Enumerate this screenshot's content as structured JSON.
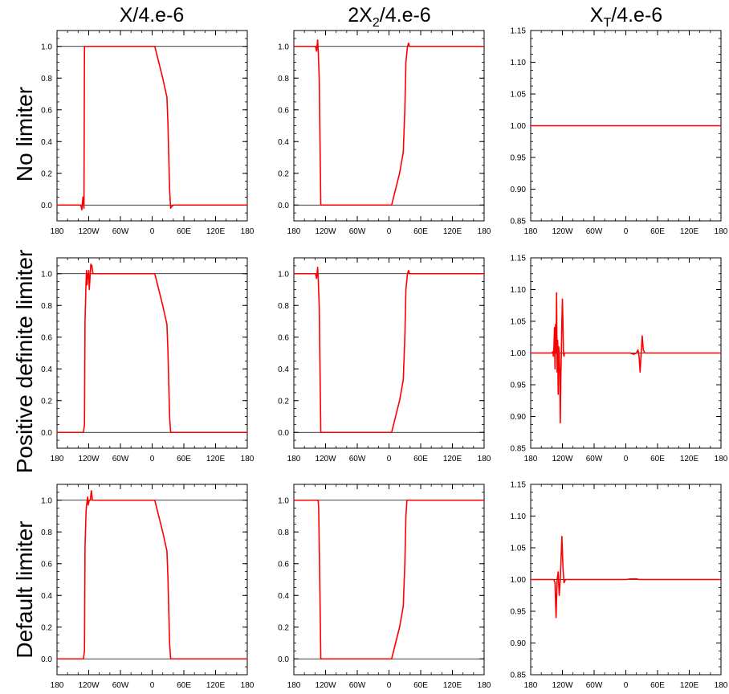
{
  "columns": [
    {
      "pre": "X",
      "sub": "",
      "post": "/4.e-6"
    },
    {
      "pre": "2X",
      "sub": "2",
      "post": "/4.e-6"
    },
    {
      "pre": "X",
      "sub": "T",
      "post": "/4.e-6"
    }
  ],
  "rows": [
    "No limiter",
    "Positive definite limiter",
    "Default limiter"
  ],
  "series_color": "#ff0000",
  "chart_data": [
    {
      "type": "line",
      "panel": "r1c1",
      "xlabel": "",
      "ylabel": "",
      "xlim": [
        -180,
        180
      ],
      "ylim": [
        -0.1,
        1.1
      ],
      "xticks": [
        "180",
        "120W",
        "60W",
        "0",
        "60E",
        "120E",
        "180"
      ],
      "yticks": [
        "0.0",
        "0.2",
        "0.4",
        "0.6",
        "0.8",
        "1.0"
      ],
      "ytick_values": [
        0,
        0.2,
        0.4,
        0.6,
        0.8,
        1.0
      ],
      "ref_lines": [
        0,
        1
      ],
      "series": [
        {
          "x": [
            -180,
            -135,
            -133,
            -131,
            -129,
            -128,
            -125,
            -122,
            5,
            20,
            28,
            30,
            33,
            35,
            37,
            40,
            180
          ],
          "y": [
            0,
            0,
            -0.03,
            0.05,
            -0.02,
            1.0,
            1.0,
            1.0,
            1.0,
            0.8,
            0.68,
            0.5,
            0.1,
            -0.02,
            -0.01,
            0,
            0
          ]
        }
      ]
    },
    {
      "type": "line",
      "panel": "r1c2",
      "xlabel": "",
      "ylabel": "",
      "xlim": [
        -180,
        180
      ],
      "ylim": [
        -0.1,
        1.1
      ],
      "xticks": [
        "180",
        "120W",
        "60W",
        "0",
        "60E",
        "120E",
        "180"
      ],
      "yticks": [
        "0.0",
        "0.2",
        "0.4",
        "0.6",
        "0.8",
        "1.0"
      ],
      "ytick_values": [
        0,
        0.2,
        0.4,
        0.6,
        0.8,
        1.0
      ],
      "ref_lines": [
        0,
        1
      ],
      "series": [
        {
          "x": [
            -180,
            -139,
            -137,
            -135,
            -134,
            -132,
            -129,
            5,
            20,
            27,
            30,
            32,
            35,
            37,
            39,
            180
          ],
          "y": [
            1.0,
            1.0,
            0.97,
            1.04,
            0.98,
            0.8,
            0.0,
            0.0,
            0.2,
            0.33,
            0.6,
            0.9,
            1.0,
            1.02,
            1.0,
            1.0
          ]
        }
      ]
    },
    {
      "type": "line",
      "panel": "r1c3",
      "xlabel": "",
      "ylabel": "",
      "xlim": [
        -180,
        180
      ],
      "ylim": [
        0.85,
        1.15
      ],
      "xticks": [
        "180",
        "120W",
        "60W",
        "0",
        "60E",
        "120E",
        "180"
      ],
      "yticks": [
        "0.85",
        "0.90",
        "0.95",
        "1.00",
        "1.05",
        "1.10",
        "1.15"
      ],
      "ytick_values": [
        0.85,
        0.9,
        0.95,
        1.0,
        1.05,
        1.1,
        1.15
      ],
      "ref_lines": [
        1.0
      ],
      "series": [
        {
          "x": [
            -180,
            180
          ],
          "y": [
            1.0,
            1.0
          ]
        }
      ]
    },
    {
      "type": "line",
      "panel": "r2c1",
      "xlabel": "",
      "ylabel": "",
      "xlim": [
        -180,
        180
      ],
      "ylim": [
        -0.1,
        1.1
      ],
      "xticks": [
        "180",
        "120W",
        "60W",
        "0",
        "60E",
        "120E",
        "180"
      ],
      "yticks": [
        "0.0",
        "0.2",
        "0.4",
        "0.6",
        "0.8",
        "1.0"
      ],
      "ytick_values": [
        0,
        0.2,
        0.4,
        0.6,
        0.8,
        1.0
      ],
      "ref_lines": [
        0,
        1
      ],
      "series": [
        {
          "x": [
            -180,
            -130,
            -128,
            -127,
            -125,
            -124,
            -123,
            -122,
            -121,
            -120,
            -119,
            -118,
            -117,
            -116,
            -114,
            -112,
            -108,
            5,
            20,
            28,
            30,
            33,
            35,
            37,
            180
          ],
          "y": [
            0,
            0,
            0.05,
            0.7,
            0.95,
            1.02,
            0.93,
            1.0,
            0.97,
            1.02,
            0.9,
            0.95,
            1.0,
            1.06,
            1.05,
            1.0,
            1.0,
            1.0,
            0.8,
            0.68,
            0.5,
            0.1,
            0.0,
            0,
            0
          ]
        }
      ]
    },
    {
      "type": "line",
      "panel": "r2c2",
      "xlabel": "",
      "ylabel": "",
      "xlim": [
        -180,
        180
      ],
      "ylim": [
        -0.1,
        1.1
      ],
      "xticks": [
        "180",
        "120W",
        "60W",
        "0",
        "60E",
        "120E",
        "180"
      ],
      "yticks": [
        "0.0",
        "0.2",
        "0.4",
        "0.6",
        "0.8",
        "1.0"
      ],
      "ytick_values": [
        0,
        0.2,
        0.4,
        0.6,
        0.8,
        1.0
      ],
      "ref_lines": [
        0,
        1
      ],
      "series": [
        {
          "x": [
            -180,
            -139,
            -137,
            -135,
            -134,
            -132,
            -129,
            5,
            20,
            27,
            30,
            32,
            35,
            37,
            39,
            180
          ],
          "y": [
            1.0,
            1.0,
            0.97,
            1.04,
            0.98,
            0.8,
            0.0,
            0.0,
            0.2,
            0.33,
            0.6,
            0.9,
            1.0,
            1.02,
            1.0,
            1.0
          ]
        }
      ]
    },
    {
      "type": "line",
      "panel": "r2c3",
      "xlabel": "",
      "ylabel": "",
      "xlim": [
        -180,
        180
      ],
      "ylim": [
        0.85,
        1.15
      ],
      "xticks": [
        "180",
        "120W",
        "60W",
        "0",
        "60E",
        "120E",
        "180"
      ],
      "yticks": [
        "0.85",
        "0.90",
        "0.95",
        "1.00",
        "1.05",
        "1.10",
        "1.15"
      ],
      "ytick_values": [
        0.85,
        0.9,
        0.95,
        1.0,
        1.05,
        1.1,
        1.15
      ],
      "ref_lines": [
        1.0
      ],
      "series": [
        {
          "x": [
            -180,
            -140,
            -138,
            -137,
            -136,
            -135,
            -134,
            -133,
            -132,
            -131,
            -130,
            -129,
            -128,
            -127,
            -126,
            -125,
            -124,
            -123,
            -122,
            -121,
            -120,
            -119,
            -118,
            -117,
            -116,
            -115,
            -112,
            0,
            3,
            8,
            15,
            20,
            23,
            25,
            27,
            29,
            31,
            33,
            36,
            40,
            180
          ],
          "y": [
            1.0,
            1.0,
            1.002,
            0.995,
            1.01,
            1.04,
            0.975,
            1.045,
            1.0,
            1.095,
            0.97,
            1.02,
            0.935,
            1.01,
            1.0,
            0.97,
            0.89,
            0.96,
            1.0,
            1.05,
            1.085,
            1.05,
            1.0,
            0.995,
            1.0,
            1.0,
            1.0,
            1.0,
            1.0,
            1.0,
            0.998,
            1.0,
            1.005,
            0.995,
            0.97,
            1.0,
            1.027,
            1.005,
            1.0,
            1.0,
            1.0
          ]
        }
      ]
    },
    {
      "type": "line",
      "panel": "r3c1",
      "xlabel": "",
      "ylabel": "",
      "xlim": [
        -180,
        180
      ],
      "ylim": [
        -0.1,
        1.1
      ],
      "xticks": [
        "180",
        "120W",
        "60W",
        "0",
        "60E",
        "120E",
        "180"
      ],
      "yticks": [
        "0.0",
        "0.2",
        "0.4",
        "0.6",
        "0.8",
        "1.0"
      ],
      "ytick_values": [
        0,
        0.2,
        0.4,
        0.6,
        0.8,
        1.0
      ],
      "ref_lines": [
        0,
        1
      ],
      "series": [
        {
          "x": [
            -180,
            -130,
            -128,
            -127,
            -125,
            -124,
            -122,
            -121,
            -119,
            -117,
            -115,
            -113,
            -111,
            -108,
            5,
            20,
            28,
            30,
            33,
            35,
            37,
            180
          ],
          "y": [
            0,
            0,
            0.05,
            0.7,
            0.93,
            0.97,
            1.02,
            0.97,
            1.0,
            1.0,
            1.06,
            1.0,
            1.0,
            1.0,
            1.0,
            0.8,
            0.68,
            0.5,
            0.1,
            0.0,
            0,
            0
          ]
        }
      ]
    },
    {
      "type": "line",
      "panel": "r3c2",
      "xlabel": "",
      "ylabel": "",
      "xlim": [
        -180,
        180
      ],
      "ylim": [
        -0.1,
        1.1
      ],
      "xticks": [
        "180",
        "120W",
        "60W",
        "0",
        "60E",
        "120E",
        "180"
      ],
      "yticks": [
        "0.0",
        "0.2",
        "0.4",
        "0.6",
        "0.8",
        "1.0"
      ],
      "ytick_values": [
        0,
        0.2,
        0.4,
        0.6,
        0.8,
        1.0
      ],
      "ref_lines": [
        0,
        1
      ],
      "series": [
        {
          "x": [
            -180,
            -134,
            -133,
            -131,
            -129,
            5,
            20,
            27,
            30,
            32,
            34,
            37,
            180
          ],
          "y": [
            1.0,
            1.0,
            0.95,
            0.5,
            0.0,
            0.0,
            0.2,
            0.33,
            0.6,
            0.9,
            1.0,
            1.0,
            1.0
          ]
        }
      ]
    },
    {
      "type": "line",
      "panel": "r3c3",
      "xlabel": "",
      "ylabel": "",
      "xlim": [
        -180,
        180
      ],
      "ylim": [
        0.85,
        1.15
      ],
      "xticks": [
        "180",
        "120W",
        "60W",
        "0",
        "60E",
        "120E",
        "180"
      ],
      "yticks": [
        "0.85",
        "0.90",
        "0.95",
        "1.00",
        "1.05",
        "1.10",
        "1.15"
      ],
      "ytick_values": [
        0.85,
        0.9,
        0.95,
        1.0,
        1.05,
        1.1,
        1.15
      ],
      "ref_lines": [
        1.0
      ],
      "series": [
        {
          "x": [
            -180,
            -136,
            -134,
            -132,
            -130,
            -128,
            -126,
            -124,
            -121,
            -119,
            -117,
            -114,
            0,
            10,
            20,
            25,
            30,
            180
          ],
          "y": [
            1.0,
            1.0,
            0.995,
            0.94,
            1.0,
            1.012,
            0.975,
            1.0,
            1.068,
            1.02,
            0.995,
            1.0,
            1.0,
            1.001,
            1.001,
            1.0,
            1.0,
            1.0
          ]
        }
      ]
    }
  ]
}
